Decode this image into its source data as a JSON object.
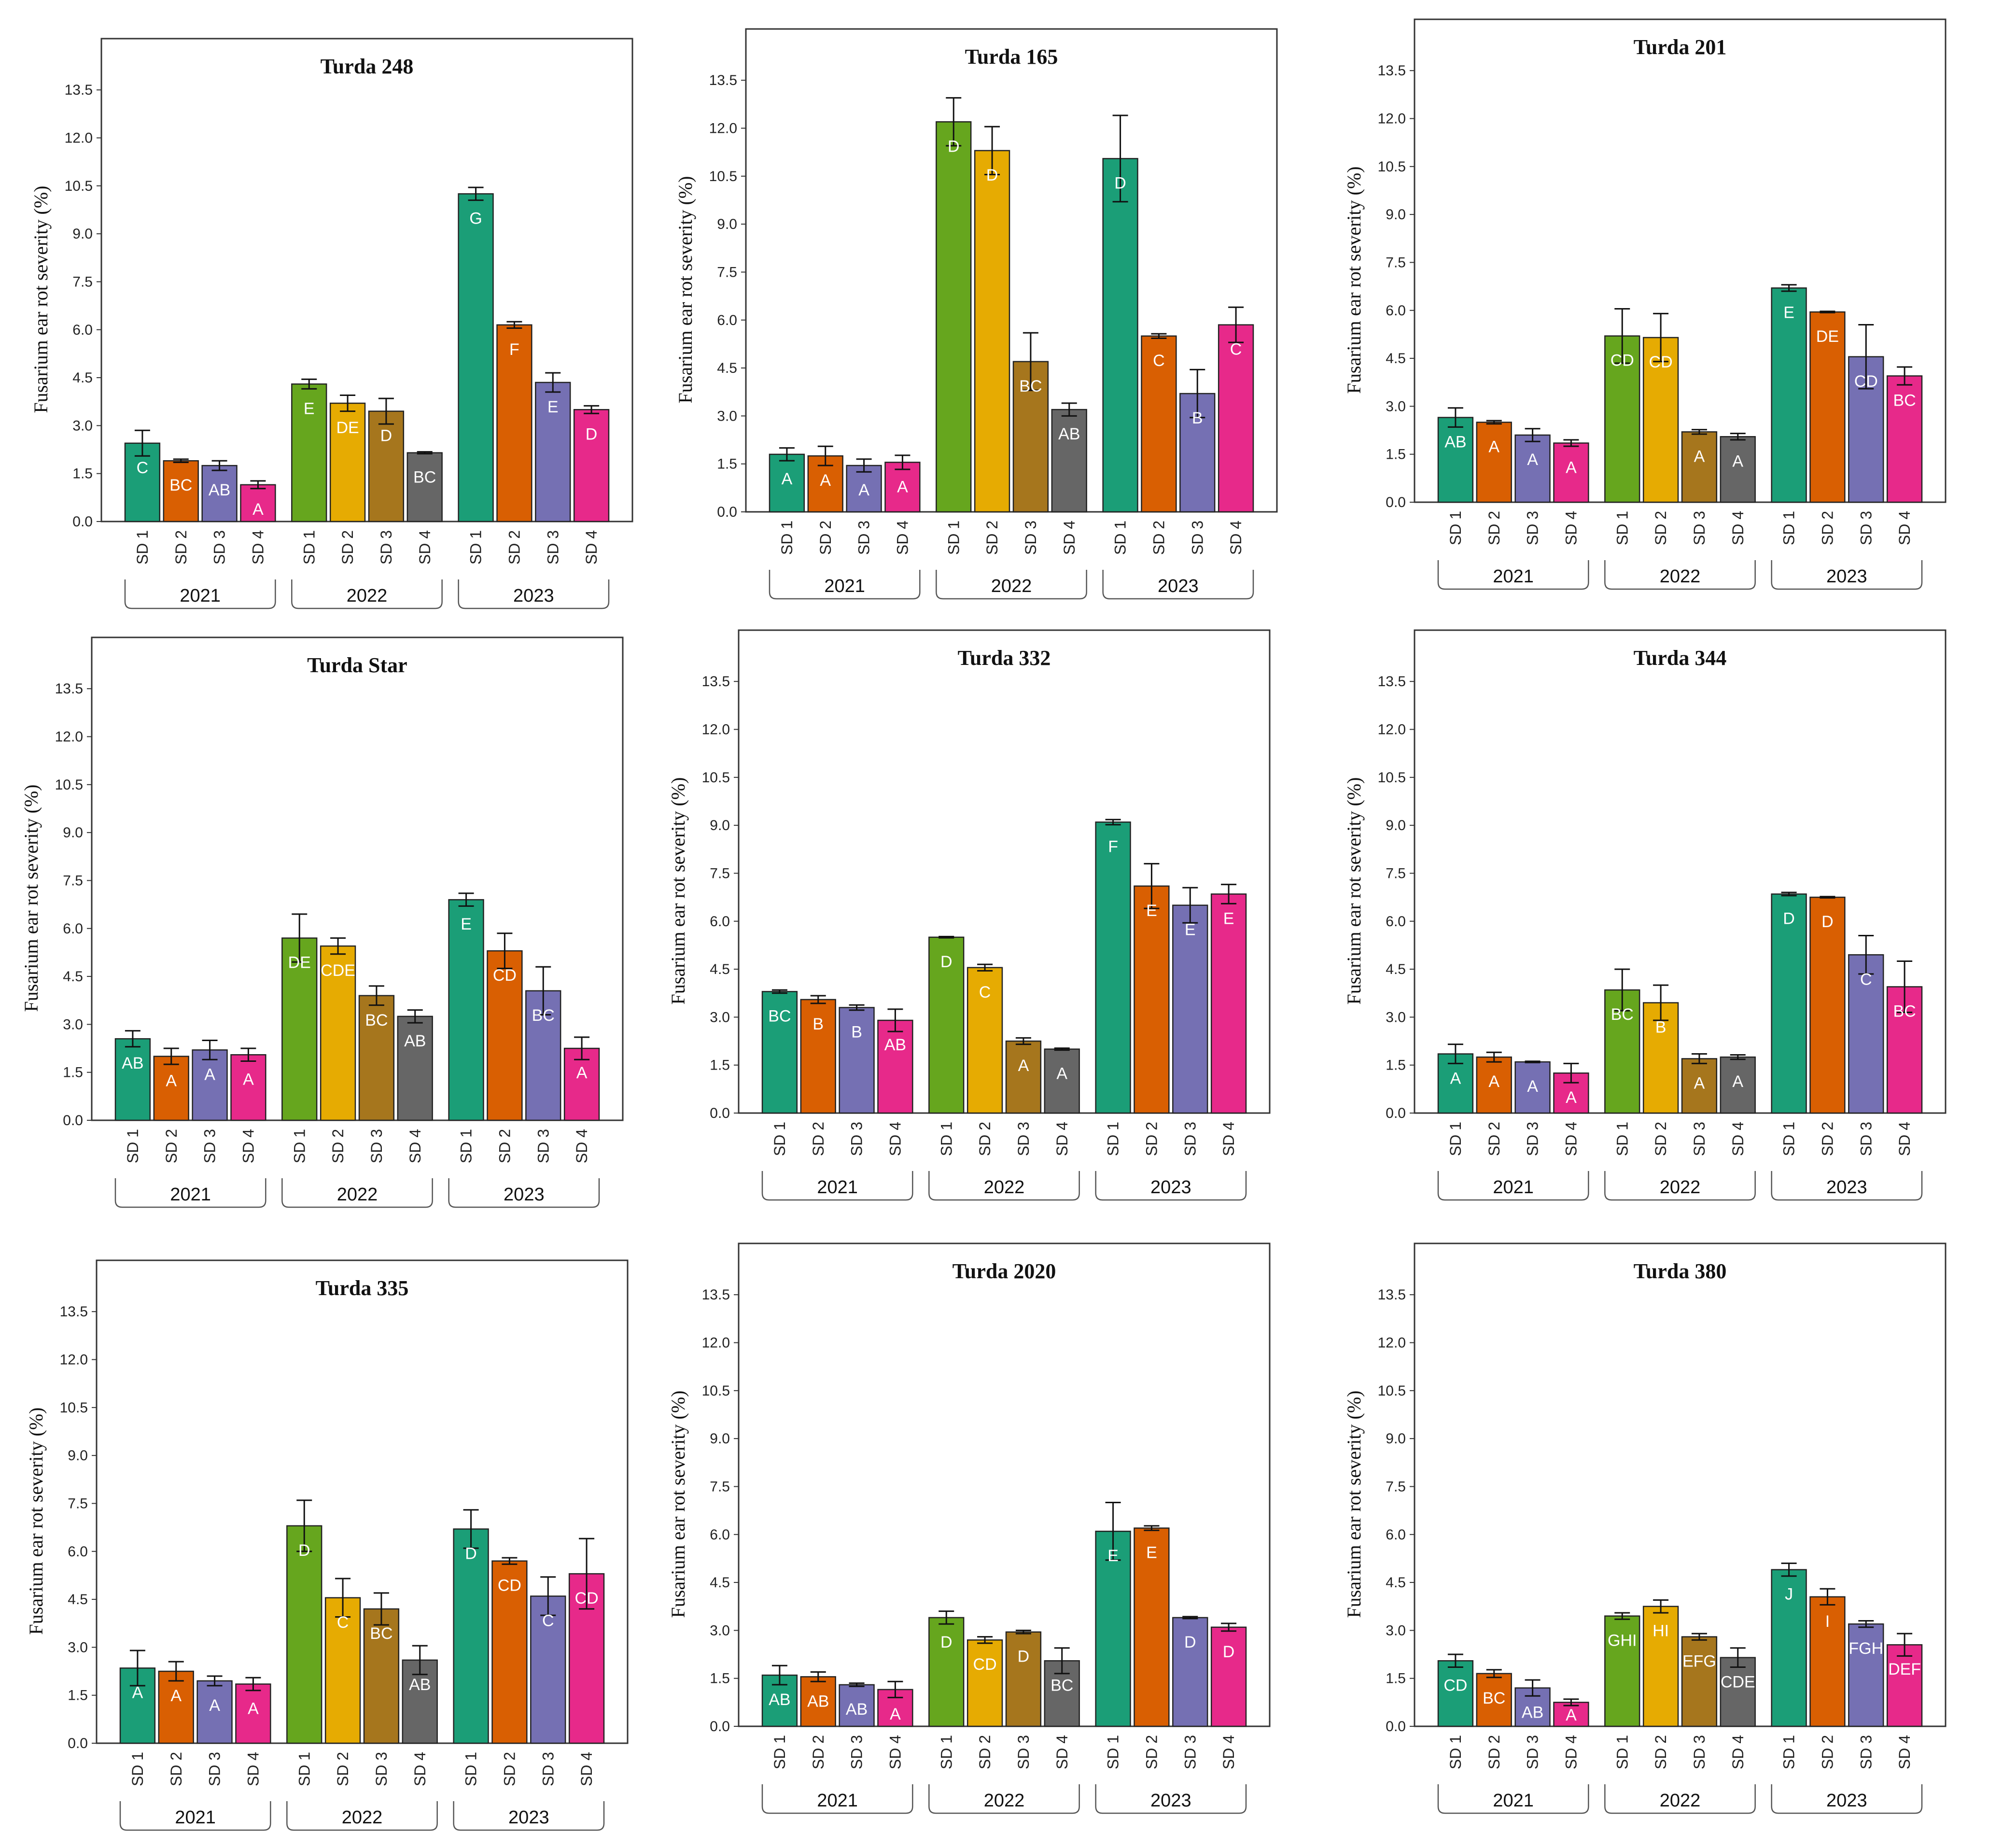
{
  "figure": {
    "y_label": "Fusarium ear rot severity (%)",
    "y_ticks": [
      "0.0",
      "1.5",
      "3.0",
      "4.5",
      "6.0",
      "7.5",
      "9.0",
      "10.5",
      "12.0",
      "13.5"
    ],
    "ylim": [
      0,
      14.5
    ],
    "dates": [
      "SD 1",
      "SD 2",
      "SD 3",
      "SD 4"
    ],
    "years": [
      "2021",
      "2022",
      "2023"
    ],
    "colors": {
      "2021": [
        "#1b9e77",
        "#d95f02",
        "#7570b3",
        "#e7298a"
      ],
      "2022": [
        "#66a61e",
        "#e6ab02",
        "#a6761d",
        "#666666"
      ],
      "2023": [
        "#1b9e77",
        "#d95f02",
        "#7570b3",
        "#e7298a"
      ]
    }
  },
  "chart_data": [
    {
      "type": "bar",
      "title": "Turda 248",
      "ylabel": "Fusarium ear rot severity (%)",
      "values": [
        2.45,
        1.9,
        1.75,
        1.15,
        4.3,
        3.7,
        3.45,
        2.15,
        10.25,
        6.15,
        4.35,
        3.5
      ],
      "errors": [
        0.4,
        0.05,
        0.15,
        0.12,
        0.15,
        0.25,
        0.4,
        0.03,
        0.2,
        0.1,
        0.3,
        0.12
      ],
      "letters": [
        "C",
        "BC",
        "AB",
        "A",
        "E",
        "DE",
        "D",
        "BC",
        "G",
        "F",
        "E",
        "D"
      ]
    },
    {
      "type": "bar",
      "title": "Turda 165",
      "ylabel": "Fusarium ear rot severity (%)",
      "values": [
        1.8,
        1.75,
        1.45,
        1.55,
        12.2,
        11.3,
        4.7,
        3.2,
        11.05,
        5.5,
        3.7,
        5.85
      ],
      "errors": [
        0.2,
        0.3,
        0.2,
        0.22,
        0.75,
        0.75,
        0.9,
        0.2,
        1.35,
        0.07,
        0.75,
        0.55
      ],
      "letters": [
        "A",
        "A",
        "A",
        "A",
        "D",
        "D",
        "BC",
        "AB",
        "D",
        "C",
        "B",
        "C"
      ]
    },
    {
      "type": "bar",
      "title": "Turda 201",
      "ylabel": "Fusarium ear rot severity (%)",
      "values": [
        2.65,
        2.5,
        2.1,
        1.85,
        5.2,
        5.15,
        2.2,
        2.05,
        6.7,
        5.95,
        4.55,
        3.95
      ],
      "errors": [
        0.3,
        0.05,
        0.2,
        0.1,
        0.85,
        0.75,
        0.07,
        0.1,
        0.1,
        0.02,
        1.0,
        0.28
      ],
      "letters": [
        "AB",
        "A",
        "A",
        "A",
        "CD",
        "CD",
        "A",
        "A",
        "E",
        "DE",
        "CD",
        "BC"
      ]
    },
    {
      "type": "bar",
      "title": "Turda Star",
      "ylabel": "Fusarium ear rot severity (%)",
      "values": [
        2.55,
        2.0,
        2.2,
        2.05,
        5.7,
        5.45,
        3.9,
        3.25,
        6.9,
        5.3,
        4.05,
        2.25
      ],
      "errors": [
        0.25,
        0.25,
        0.3,
        0.2,
        0.75,
        0.25,
        0.3,
        0.2,
        0.2,
        0.55,
        0.75,
        0.35
      ],
      "letters": [
        "AB",
        "A",
        "A",
        "A",
        "DE",
        "CDE",
        "BC",
        "AB",
        "E",
        "CD",
        "BC",
        "A"
      ]
    },
    {
      "type": "bar",
      "title": "Turda 332",
      "ylabel": "Fusarium ear rot severity (%)",
      "values": [
        3.8,
        3.55,
        3.3,
        2.9,
        5.5,
        4.55,
        2.25,
        2.0,
        9.1,
        7.1,
        6.5,
        6.85
      ],
      "errors": [
        0.05,
        0.12,
        0.08,
        0.35,
        0.02,
        0.1,
        0.1,
        0.03,
        0.08,
        0.7,
        0.55,
        0.3
      ],
      "letters": [
        "BC",
        "B",
        "B",
        "AB",
        "D",
        "C",
        "A",
        "A",
        "F",
        "E",
        "E",
        "E"
      ]
    },
    {
      "type": "bar",
      "title": "Turda 344",
      "ylabel": "Fusarium ear rot severity (%)",
      "values": [
        1.85,
        1.75,
        1.6,
        1.25,
        3.85,
        3.45,
        1.7,
        1.75,
        6.85,
        6.75,
        4.95,
        3.95
      ],
      "errors": [
        0.3,
        0.15,
        0.02,
        0.3,
        0.65,
        0.55,
        0.15,
        0.07,
        0.05,
        0.02,
        0.6,
        0.8
      ],
      "letters": [
        "A",
        "A",
        "A",
        "A",
        "BC",
        "B",
        "A",
        "A",
        "D",
        "D",
        "C",
        "BC"
      ]
    },
    {
      "type": "bar",
      "title": "Turda 335",
      "ylabel": "Fusarium ear rot severity (%)",
      "values": [
        2.35,
        2.25,
        1.95,
        1.85,
        6.8,
        4.55,
        4.2,
        2.6,
        6.7,
        5.7,
        4.6,
        5.3
      ],
      "errors": [
        0.55,
        0.3,
        0.15,
        0.2,
        0.8,
        0.6,
        0.5,
        0.45,
        0.6,
        0.1,
        0.6,
        1.1
      ],
      "letters": [
        "A",
        "A",
        "A",
        "A",
        "D",
        "C",
        "BC",
        "AB",
        "D",
        "CD",
        "C",
        "CD"
      ]
    },
    {
      "type": "bar",
      "title": "Turda 2020",
      "ylabel": "Fusarium ear rot severity (%)",
      "values": [
        1.6,
        1.55,
        1.3,
        1.15,
        3.4,
        2.7,
        2.95,
        2.05,
        6.1,
        6.2,
        3.4,
        3.1
      ],
      "errors": [
        0.3,
        0.15,
        0.05,
        0.25,
        0.2,
        0.1,
        0.05,
        0.4,
        0.9,
        0.07,
        0.03,
        0.12
      ],
      "letters": [
        "AB",
        "AB",
        "AB",
        "A",
        "D",
        "CD",
        "D",
        "BC",
        "E",
        "E",
        "D",
        "D"
      ]
    },
    {
      "type": "bar",
      "title": "Turda 380",
      "ylabel": "Fusarium ear rot severity (%)",
      "values": [
        2.05,
        1.65,
        1.2,
        0.75,
        3.45,
        3.75,
        2.8,
        2.15,
        4.9,
        4.05,
        3.2,
        2.55
      ],
      "errors": [
        0.2,
        0.12,
        0.25,
        0.1,
        0.1,
        0.2,
        0.1,
        0.3,
        0.2,
        0.25,
        0.1,
        0.35
      ],
      "letters": [
        "CD",
        "BC",
        "AB",
        "A",
        "GHI",
        "HI",
        "EFG",
        "CDE",
        "J",
        "I",
        "FGH",
        "DEF"
      ]
    }
  ]
}
